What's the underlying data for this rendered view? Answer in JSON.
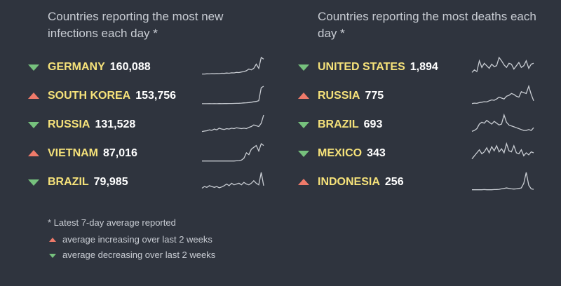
{
  "infections": {
    "title": "Countries reporting the most new infections each day *",
    "rows": [
      {
        "country": "GERMANY",
        "value": "160,088",
        "trend": "down",
        "spark": [
          2,
          2,
          2.3,
          2.2,
          2.5,
          2.4,
          2.6,
          2.5,
          3,
          2.8,
          3.2,
          3,
          3.5,
          3.4,
          4,
          3.8,
          4.5,
          5,
          6,
          8,
          7,
          9,
          14,
          9,
          22,
          20
        ]
      },
      {
        "country": "SOUTH KOREA",
        "value": "153,756",
        "trend": "up",
        "spark": [
          1,
          1,
          1,
          1.1,
          1,
          1.1,
          1,
          1.2,
          1.1,
          1.2,
          1.2,
          1.3,
          1.3,
          1.4,
          1.5,
          1.6,
          1.8,
          2,
          2.2,
          2.5,
          3,
          3.5,
          4,
          5,
          22,
          24
        ]
      },
      {
        "country": "RUSSIA",
        "value": "131,528",
        "trend": "down",
        "spark": [
          2,
          2.5,
          3,
          4,
          3.5,
          5,
          4,
          6,
          5,
          4.5,
          5.5,
          5,
          6,
          5.5,
          6.5,
          6,
          5.5,
          6,
          5.5,
          7,
          8,
          10,
          9,
          8,
          12,
          22
        ]
      },
      {
        "country": "VIETNAM",
        "value": "87,016",
        "trend": "up",
        "spark": [
          1,
          1,
          1,
          1,
          1,
          1,
          1,
          1,
          1,
          1,
          1,
          1,
          1,
          1,
          1.2,
          1.5,
          2,
          4,
          10,
          8,
          14,
          16,
          18,
          12,
          20,
          18
        ]
      },
      {
        "country": "BRAZIL",
        "value": "79,985",
        "trend": "down",
        "spark": [
          3,
          5,
          4,
          6,
          5,
          4,
          5,
          3.5,
          4.5,
          6,
          8,
          6,
          9,
          7,
          8,
          9,
          7,
          10,
          8,
          7,
          9,
          12,
          9,
          7,
          22,
          6
        ]
      }
    ]
  },
  "deaths": {
    "title": "Countries reporting the most deaths each day *",
    "rows": [
      {
        "country": "UNITED STATES",
        "value": "1,894",
        "trend": "down",
        "spark": [
          4,
          7,
          5,
          18,
          10,
          15,
          12,
          9,
          14,
          11,
          12,
          22,
          18,
          13,
          10,
          15,
          14,
          8,
          12,
          16,
          10,
          12,
          18,
          9,
          14,
          15
        ]
      },
      {
        "country": "RUSSIA",
        "value": "775",
        "trend": "up",
        "spark": [
          1,
          1.5,
          1.2,
          2,
          2.5,
          3,
          2.8,
          4,
          5,
          4.5,
          6,
          8,
          7,
          6,
          9,
          10,
          12,
          11,
          9,
          8,
          14,
          13,
          12,
          20,
          11,
          4
        ]
      },
      {
        "country": "BRAZIL",
        "value": "693",
        "trend": "down",
        "spark": [
          2,
          3,
          5,
          10,
          12,
          11,
          14,
          12,
          10,
          13,
          11,
          9,
          10,
          20,
          12,
          9,
          8,
          7,
          6,
          5,
          4,
          3,
          3,
          4,
          3,
          6
        ]
      },
      {
        "country": "MEXICO",
        "value": "343",
        "trend": "down",
        "spark": [
          3,
          6,
          9,
          12,
          8,
          10,
          14,
          9,
          15,
          11,
          16,
          10,
          13,
          9,
          18,
          11,
          10,
          16,
          9,
          8,
          12,
          6,
          9,
          7,
          10,
          9
        ]
      },
      {
        "country": "INDONESIA",
        "value": "256",
        "trend": "up",
        "spark": [
          1,
          1,
          1,
          1,
          1,
          1.2,
          1,
          1.1,
          1,
          1.2,
          1.3,
          1.5,
          2,
          2.5,
          3,
          2.5,
          2,
          1.8,
          2,
          2.5,
          3,
          8,
          20,
          6,
          2,
          1.5
        ]
      }
    ]
  },
  "legend": {
    "note": "* Latest 7-day average reported",
    "increasing": "average increasing over last 2 weeks",
    "decreasing": "average decreasing over last 2 weeks"
  },
  "colors": {
    "up": "#ef7a6a",
    "down": "#76c17d",
    "country": "#f6e27a",
    "background": "#2f343e"
  }
}
